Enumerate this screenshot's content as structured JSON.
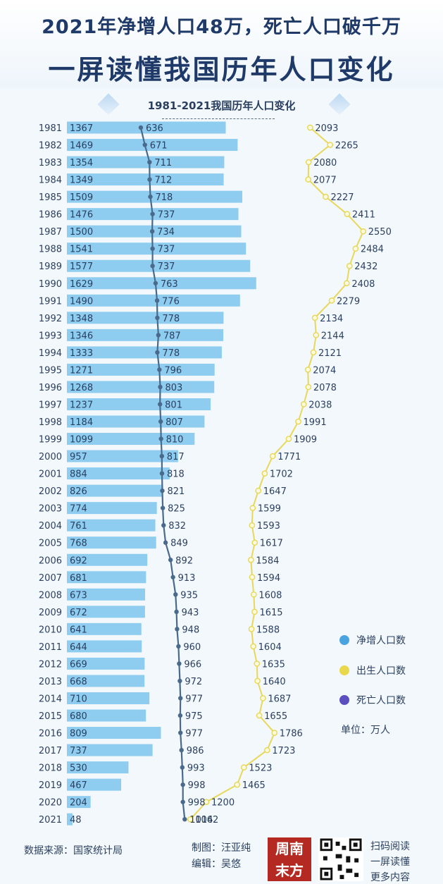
{
  "header": {
    "title_line1": "2021年净增人口48万，死亡人口破千万",
    "title_line2": "一屏读懂我国历年人口变化"
  },
  "chart_data": {
    "type": "bar",
    "title": "1981-2021我国历年人口变化",
    "categories": [
      "1981",
      "1982",
      "1983",
      "1984",
      "1985",
      "1986",
      "1987",
      "1988",
      "1989",
      "1990",
      "1991",
      "1992",
      "1993",
      "1994",
      "1995",
      "1996",
      "1997",
      "1998",
      "1999",
      "2000",
      "2001",
      "2002",
      "2003",
      "2004",
      "2005",
      "2006",
      "2007",
      "2008",
      "2009",
      "2010",
      "2011",
      "2012",
      "2013",
      "2014",
      "2015",
      "2016",
      "2017",
      "2018",
      "2019",
      "2020",
      "2021"
    ],
    "series": [
      {
        "name": "净增人口数",
        "kind": "bar",
        "color": "#8fcdf0",
        "values": [
          1367,
          1469,
          1354,
          1349,
          1509,
          1476,
          1500,
          1541,
          1577,
          1629,
          1490,
          1348,
          1346,
          1333,
          1271,
          1268,
          1237,
          1184,
          1099,
          957,
          884,
          826,
          774,
          761,
          768,
          692,
          681,
          673,
          672,
          641,
          644,
          669,
          668,
          710,
          680,
          809,
          737,
          530,
          467,
          204,
          48
        ]
      },
      {
        "name": "出生人口数",
        "kind": "line",
        "color": "#e8d85a",
        "values": [
          2093,
          2265,
          2080,
          2077,
          2227,
          2411,
          2550,
          2484,
          2432,
          2408,
          2279,
          2134,
          2144,
          2121,
          2074,
          2078,
          2038,
          1991,
          1909,
          1771,
          1702,
          1647,
          1599,
          1593,
          1617,
          1584,
          1594,
          1608,
          1615,
          1588,
          1604,
          1635,
          1640,
          1687,
          1655,
          1786,
          1723,
          1523,
          1465,
          1200,
          1062
        ]
      },
      {
        "name": "死亡人口数",
        "kind": "line",
        "color": "#4a6a8c",
        "values": [
          636,
          671,
          711,
          712,
          718,
          737,
          734,
          737,
          737,
          763,
          776,
          778,
          787,
          778,
          796,
          803,
          801,
          807,
          810,
          817,
          818,
          821,
          825,
          832,
          849,
          892,
          913,
          935,
          943,
          948,
          960,
          966,
          972,
          977,
          975,
          977,
          986,
          993,
          998,
          998,
          1014
        ]
      }
    ],
    "unit_label": "单位：万人",
    "legend_position": "right",
    "xlim": [
      0,
      2600
    ]
  },
  "legend": [
    {
      "label": "净增人口数",
      "color": "#4aa3de"
    },
    {
      "label": "出生人口数",
      "color": "#e9d74c"
    },
    {
      "label": "死亡人口数",
      "color": "#5b4fc0"
    }
  ],
  "footer": {
    "source": "数据来源：国家统计局",
    "chart_by": "制图：汪亚纯",
    "editor": "编辑：吴悠",
    "logo_text": "周南末方",
    "qr_text": [
      "扫码阅读",
      "一屏读懂",
      "更多内容"
    ]
  }
}
